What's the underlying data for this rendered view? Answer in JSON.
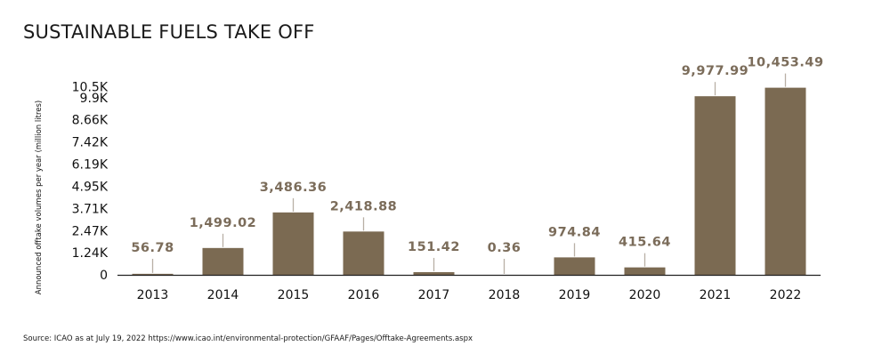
{
  "title": "SUSTAINABLE FUELS TAKE OFF",
  "source": "Source: ICAO as at July 19, 2022 https://www.icao.int/environmental-protection/GFAAF/Pages/Offtake-Agreements.aspx",
  "colors": {
    "bar": "#7b6a52",
    "label": "#7b6c5a",
    "leader": "#b9b0a5",
    "axis": "#222222"
  },
  "chart_data": {
    "type": "bar",
    "title": "SUSTAINABLE FUELS TAKE OFF",
    "xlabel": "",
    "ylabel": "Announced offtake volumes per year (million litres)",
    "categories": [
      "2013",
      "2014",
      "2015",
      "2016",
      "2017",
      "2018",
      "2019",
      "2020",
      "2021",
      "2022"
    ],
    "values": [
      56.78,
      1499.02,
      3486.36,
      2418.88,
      151.42,
      0.36,
      974.84,
      415.64,
      9977.99,
      10453.49
    ],
    "value_labels": [
      "56.78",
      "1,499.02",
      "3,486.36",
      "2,418.88",
      "151.42",
      "0.36",
      "974.84",
      "415.64",
      "9,977.99",
      "10,453.49"
    ],
    "yticks": [
      0,
      1240,
      2470,
      3710,
      4950,
      6190,
      7420,
      8660,
      9900,
      10500
    ],
    "ytick_labels": [
      "0",
      "1.24K",
      "2.47K",
      "3.71K",
      "4.95K",
      "6.19K",
      "7.42K",
      "8.66K",
      "9.9K",
      "10.5K"
    ],
    "ylim": [
      0,
      11130
    ],
    "grid": false,
    "legend": "none"
  }
}
